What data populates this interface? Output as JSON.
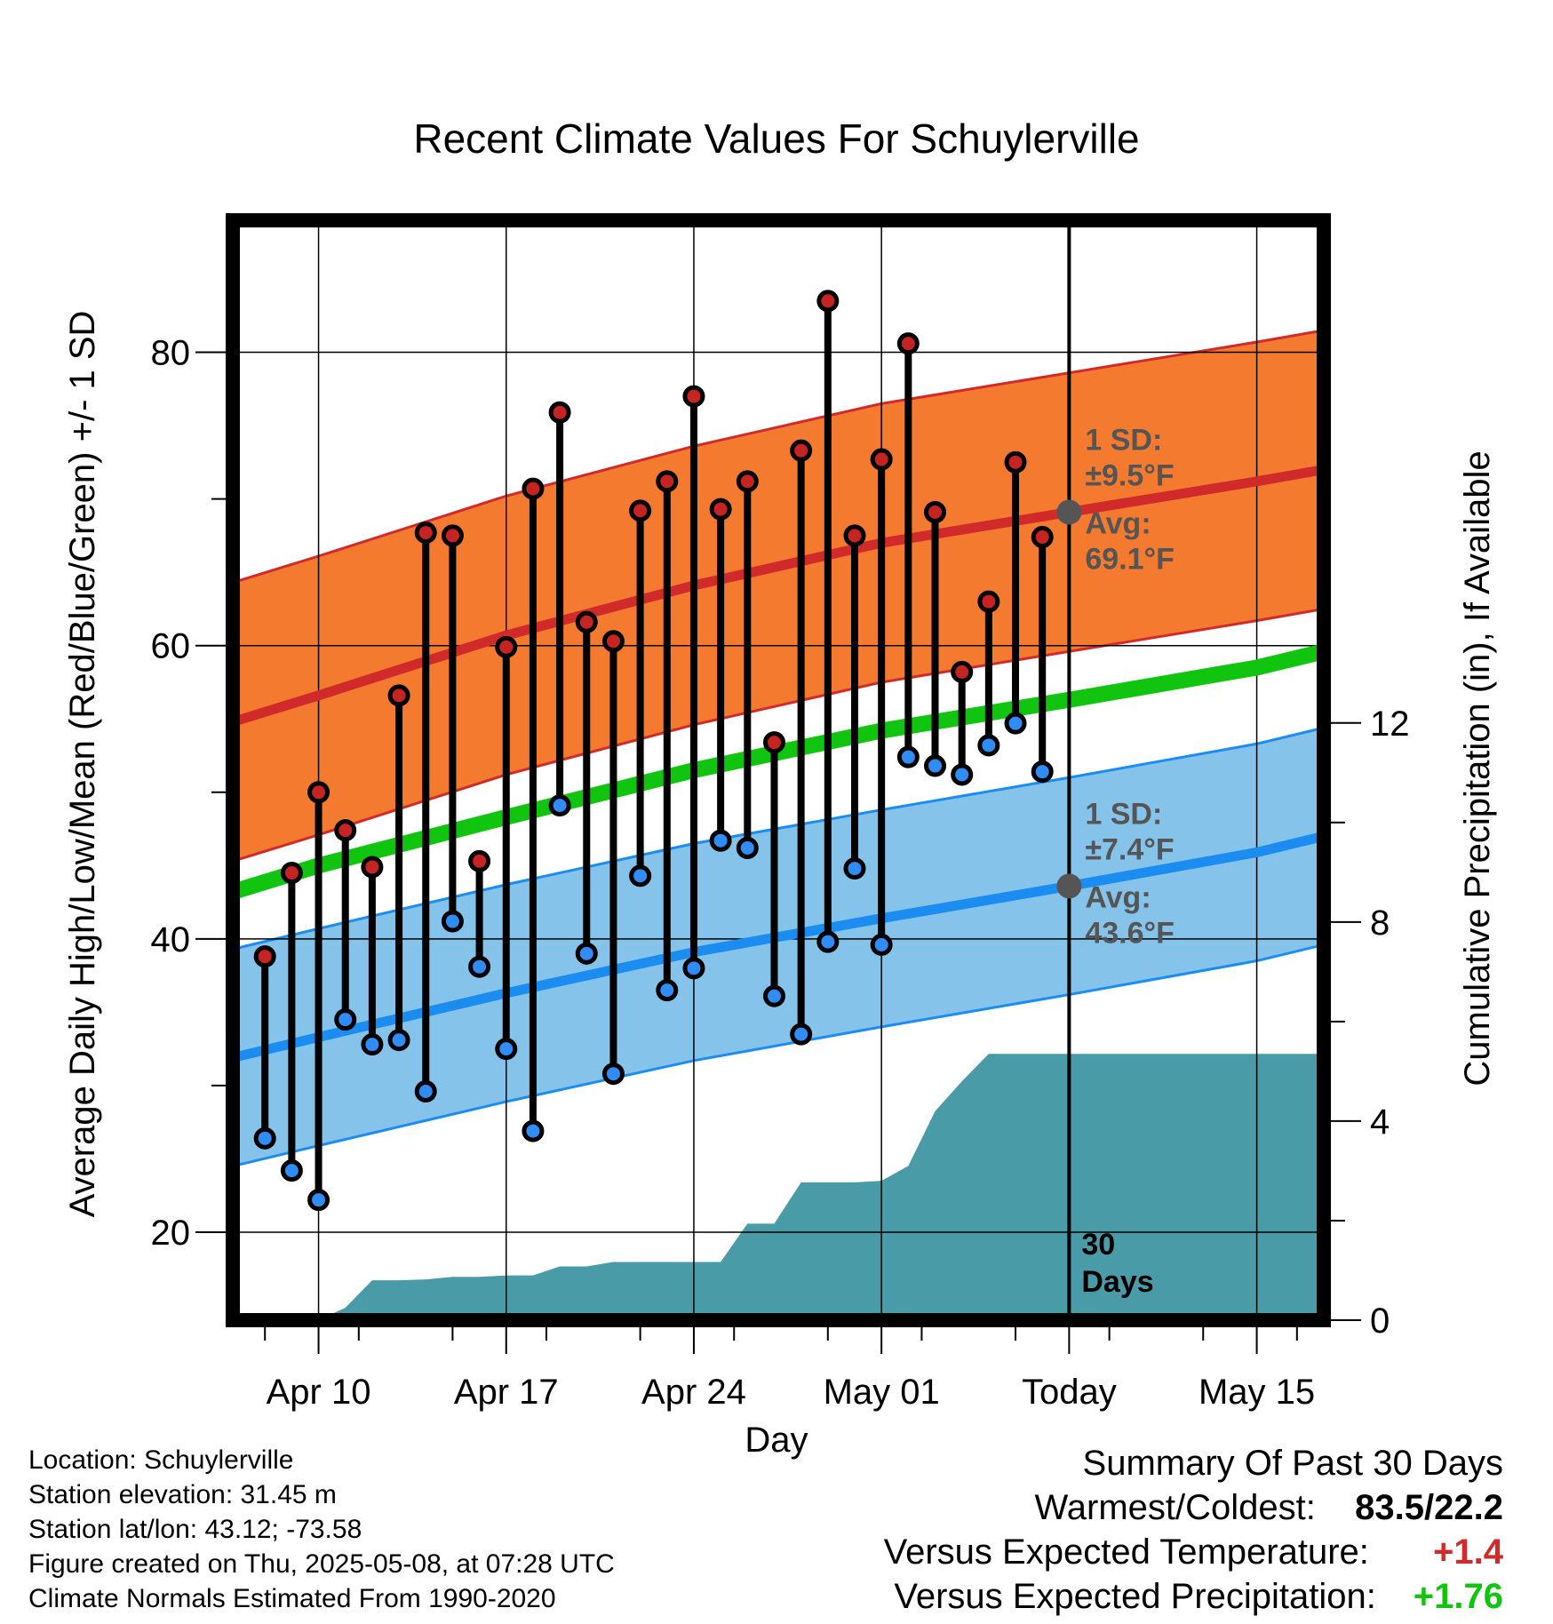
{
  "chart_data": {
    "type": "line",
    "title": "Recent Climate Values For Schuylerville",
    "xlabel": "Day",
    "ylabel": "Average Daily High/Low/Mean (Red/Blue/Green) +/- 1 SD",
    "y2label": "Cumulative Precipitation (in), If Available",
    "x_ticks": [
      {
        "day": 10,
        "label": "Apr 10"
      },
      {
        "day": 17,
        "label": "Apr 17"
      },
      {
        "day": 24,
        "label": "Apr 24"
      },
      {
        "day": 31,
        "label": "May 01"
      },
      {
        "day": 38,
        "label": "Today"
      },
      {
        "day": 45,
        "label": "May 15"
      }
    ],
    "x_range_days": [
      6.8,
      47.5
    ],
    "ylim": [
      14,
      89
    ],
    "y_ticks": [
      20,
      40,
      60,
      80
    ],
    "y2lim": [
      0,
      22.1
    ],
    "y2_ticks": [
      0,
      4,
      8,
      12
    ],
    "grid": true,
    "today_day": 38,
    "days": [
      8,
      9,
      10,
      11,
      12,
      13,
      14,
      15,
      16,
      17,
      18,
      19,
      20,
      21,
      22,
      23,
      24,
      25,
      26,
      27,
      28,
      29,
      30,
      31,
      32,
      33,
      34,
      35,
      36,
      37
    ],
    "daily_high": [
      38.8,
      44.5,
      50.0,
      47.4,
      44.9,
      56.6,
      67.7,
      67.5,
      45.3,
      59.9,
      70.7,
      75.9,
      61.6,
      60.3,
      69.2,
      71.2,
      77.0,
      69.3,
      71.2,
      53.4,
      73.3,
      83.5,
      67.5,
      72.7,
      80.6,
      69.1,
      58.2,
      63.0,
      72.5,
      67.4
    ],
    "daily_low": [
      26.4,
      24.2,
      22.2,
      34.5,
      32.8,
      33.1,
      29.6,
      41.2,
      38.1,
      32.5,
      26.9,
      49.1,
      39.0,
      30.8,
      44.3,
      36.5,
      38.0,
      46.7,
      46.2,
      36.1,
      33.5,
      39.8,
      44.8,
      39.6,
      52.4,
      51.8,
      51.2,
      53.2,
      54.7,
      51.4
    ],
    "normal_high": {
      "day": [
        6.8,
        10,
        17,
        24,
        31,
        38,
        45,
        47.5
      ],
      "values": [
        54.8,
        56.6,
        60.7,
        64.1,
        67.0,
        69.1,
        71.2,
        72.0
      ]
    },
    "normal_high_sd": 9.5,
    "normal_low": {
      "day": [
        6.8,
        10,
        17,
        24,
        31,
        38,
        45,
        47.5
      ],
      "values": [
        31.9,
        33.3,
        36.3,
        39.1,
        41.4,
        43.6,
        45.9,
        47.0
      ]
    },
    "normal_low_sd": 7.4,
    "normal_mean": {
      "day": [
        6.8,
        10,
        17,
        24,
        31,
        38,
        45,
        47.5
      ],
      "values": [
        43.2,
        45.0,
        48.3,
        51.5,
        54.2,
        56.3,
        58.5,
        59.6
      ]
    },
    "cumulative_precip": {
      "day": [
        6.8,
        10,
        11,
        12,
        13,
        14,
        15,
        16,
        17,
        18,
        19,
        20,
        21,
        22,
        23,
        24,
        25,
        26,
        27,
        28,
        29,
        30,
        31,
        32,
        33,
        34,
        35,
        36,
        37,
        38,
        47.5
      ],
      "values": [
        0,
        0,
        0.25,
        0.8,
        0.8,
        0.82,
        0.87,
        0.87,
        0.9,
        0.9,
        1.08,
        1.08,
        1.17,
        1.17,
        1.17,
        1.17,
        1.17,
        1.94,
        1.94,
        2.77,
        2.77,
        2.77,
        2.8,
        3.1,
        4.2,
        4.8,
        5.35,
        5.35,
        5.35,
        5.35,
        5.35
      ]
    },
    "colors": {
      "high_sd_band": "#f47a30",
      "high_line": "#d12a2a",
      "low_sd_band": "#86c3ea",
      "low_line": "#1b8cf0",
      "mean_line": "#11c40f",
      "precip_fill": "#4a9ba8",
      "high_dot": "#c62323",
      "low_dot": "#2f8df5",
      "label_gray": "#555555"
    },
    "annotations": {
      "high_sd_line1": "1 SD:",
      "high_sd_line2": "±9.5°F",
      "high_avg_line1": "Avg:",
      "high_avg_line2": "69.1°F",
      "low_sd_line1": "1 SD:",
      "low_sd_line2": "±7.4°F",
      "low_avg_line1": "Avg:",
      "low_avg_line2": "43.6°F",
      "days_line1": "30",
      "days_line2": "Days"
    }
  },
  "info": {
    "location": "Location: Schuylerville",
    "elevation": "Station elevation: 31.45 m",
    "latlon": "Station lat/lon: 43.12; -73.58",
    "created": "Figure created on Thu, 2025-05-08, at 07:28 UTC",
    "normals": "Climate Normals Estimated From 1990-2020"
  },
  "summary": {
    "title": "Summary Of Past 30 Days",
    "warm_cold_label": "Warmest/Coldest:",
    "warm_cold_value": "83.5/22.2",
    "temp_label": "Versus Expected Temperature:",
    "temp_value": "+1.4",
    "temp_color": "#d12a2a",
    "precip_label": "Versus Expected Precipitation:",
    "precip_value": "+1.76",
    "precip_color": "#11c40f"
  }
}
